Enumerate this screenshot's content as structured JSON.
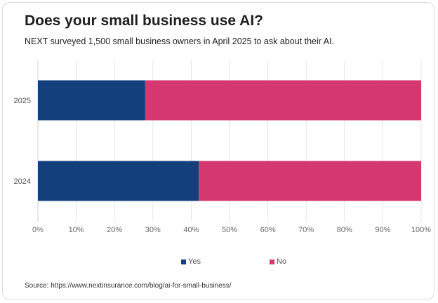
{
  "header": {
    "title": "Does your small business use AI?",
    "subtitle": "NEXT surveyed 1,500 small business owners in April 2025 to ask about their AI."
  },
  "source": "Source: https://www.nextinsurance.com/blog/ai-for-small-business/",
  "colors": {
    "yes": "#143f7d",
    "no": "#d5386e",
    "grid": "#e6e6e6",
    "axis": "#cfcfcf"
  },
  "chart_data": {
    "type": "bar",
    "orientation": "horizontal",
    "stacked": true,
    "categories": [
      "2025",
      "2024"
    ],
    "series": [
      {
        "name": "Yes",
        "values": [
          28,
          42
        ]
      },
      {
        "name": "No",
        "values": [
          72,
          58
        ]
      }
    ],
    "xlim": [
      0,
      100
    ],
    "xticks": [
      "0%",
      "10%",
      "20%",
      "30%",
      "40%",
      "50%",
      "60%",
      "70%",
      "80%",
      "90%",
      "100%"
    ],
    "legend_position": "bottom",
    "grid": true
  }
}
